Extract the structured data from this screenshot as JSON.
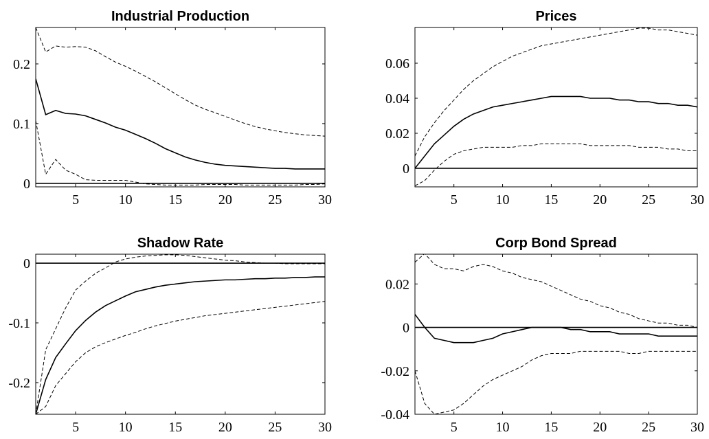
{
  "chart_data": [
    {
      "type": "line",
      "title": "Industrial Production",
      "x": [
        1,
        2,
        3,
        4,
        5,
        6,
        7,
        8,
        9,
        10,
        11,
        12,
        13,
        14,
        15,
        16,
        17,
        18,
        19,
        20,
        21,
        22,
        23,
        24,
        25,
        26,
        27,
        28,
        29,
        30
      ],
      "xlim": [
        1,
        30
      ],
      "xticks": [
        5,
        10,
        15,
        20,
        25,
        30
      ],
      "ylim": [
        -0.006,
        0.261
      ],
      "yticks": [
        0,
        0.1,
        0.2
      ],
      "reference_line": 0,
      "series": [
        {
          "color": "#000000",
          "dash": false,
          "values": [
            0.175,
            0.115,
            0.122,
            0.117,
            0.116,
            0.113,
            0.107,
            0.101,
            0.094,
            0.089,
            0.082,
            0.075,
            0.067,
            0.058,
            0.051,
            0.044,
            0.039,
            0.035,
            0.032,
            0.03,
            0.029,
            0.028,
            0.027,
            0.026,
            0.025,
            0.025,
            0.024,
            0.024,
            0.024,
            0.024
          ]
        },
        {
          "color": "#000000",
          "dash": true,
          "values": [
            0.261,
            0.22,
            0.23,
            0.228,
            0.229,
            0.228,
            0.222,
            0.212,
            0.203,
            0.196,
            0.188,
            0.179,
            0.17,
            0.16,
            0.15,
            0.14,
            0.131,
            0.124,
            0.118,
            0.112,
            0.106,
            0.1,
            0.095,
            0.091,
            0.088,
            0.085,
            0.083,
            0.081,
            0.08,
            0.079
          ]
        },
        {
          "color": "#000000",
          "dash": true,
          "values": [
            0.105,
            0.015,
            0.04,
            0.022,
            0.015,
            0.006,
            0.005,
            0.005,
            0.005,
            0.005,
            0.002,
            -0.001,
            -0.002,
            -0.003,
            -0.003,
            -0.003,
            -0.003,
            -0.002,
            -0.002,
            -0.002,
            -0.002,
            -0.003,
            -0.003,
            -0.003,
            -0.003,
            -0.003,
            -0.003,
            -0.002,
            -0.002,
            -0.001
          ]
        }
      ]
    },
    {
      "type": "line",
      "title": "Prices",
      "x": [
        1,
        2,
        3,
        4,
        5,
        6,
        7,
        8,
        9,
        10,
        11,
        12,
        13,
        14,
        15,
        16,
        17,
        18,
        19,
        20,
        21,
        22,
        23,
        24,
        25,
        26,
        27,
        28,
        29,
        30
      ],
      "xlim": [
        1,
        30
      ],
      "xticks": [
        5,
        10,
        15,
        20,
        25,
        30
      ],
      "ylim": [
        -0.0106,
        0.0804
      ],
      "yticks": [
        0,
        0.02,
        0.04,
        0.06
      ],
      "reference_line": 0,
      "series": [
        {
          "color": "#000000",
          "dash": false,
          "values": [
            0,
            0.007,
            0.014,
            0.019,
            0.024,
            0.028,
            0.031,
            0.033,
            0.035,
            0.036,
            0.037,
            0.038,
            0.039,
            0.04,
            0.041,
            0.041,
            0.041,
            0.041,
            0.04,
            0.04,
            0.04,
            0.039,
            0.039,
            0.038,
            0.038,
            0.037,
            0.037,
            0.036,
            0.036,
            0.035
          ]
        },
        {
          "color": "#000000",
          "dash": true,
          "values": [
            0.007,
            0.018,
            0.026,
            0.033,
            0.039,
            0.045,
            0.05,
            0.054,
            0.058,
            0.061,
            0.064,
            0.066,
            0.068,
            0.07,
            0.071,
            0.072,
            0.073,
            0.074,
            0.075,
            0.076,
            0.077,
            0.078,
            0.079,
            0.08,
            0.08,
            0.079,
            0.079,
            0.078,
            0.077,
            0.076
          ]
        },
        {
          "color": "#000000",
          "dash": true,
          "values": [
            -0.01,
            -0.007,
            -0.001,
            0.004,
            0.008,
            0.01,
            0.011,
            0.012,
            0.012,
            0.012,
            0.012,
            0.013,
            0.013,
            0.014,
            0.014,
            0.014,
            0.014,
            0.014,
            0.013,
            0.013,
            0.013,
            0.013,
            0.013,
            0.012,
            0.012,
            0.012,
            0.011,
            0.011,
            0.01,
            0.01
          ]
        }
      ]
    },
    {
      "type": "line",
      "title": "Shadow Rate",
      "x": [
        1,
        2,
        3,
        4,
        5,
        6,
        7,
        8,
        9,
        10,
        11,
        12,
        13,
        14,
        15,
        16,
        17,
        18,
        19,
        20,
        21,
        22,
        23,
        24,
        25,
        26,
        27,
        28,
        29,
        30
      ],
      "xlim": [
        1,
        30
      ],
      "xticks": [
        5,
        10,
        15,
        20,
        25,
        30
      ],
      "ylim": [
        -0.253,
        0.015
      ],
      "yticks": [
        -0.2,
        -0.1,
        0
      ],
      "reference_line": 0,
      "series": [
        {
          "color": "#000000",
          "dash": false,
          "values": [
            -0.253,
            -0.195,
            -0.158,
            -0.135,
            -0.113,
            -0.096,
            -0.082,
            -0.071,
            -0.063,
            -0.055,
            -0.048,
            -0.044,
            -0.04,
            -0.037,
            -0.035,
            -0.033,
            -0.031,
            -0.03,
            -0.029,
            -0.028,
            -0.028,
            -0.027,
            -0.026,
            -0.026,
            -0.025,
            -0.025,
            -0.024,
            -0.024,
            -0.023,
            -0.023
          ]
        },
        {
          "color": "#000000",
          "dash": true,
          "values": [
            -0.253,
            -0.145,
            -0.11,
            -0.075,
            -0.045,
            -0.03,
            -0.017,
            -0.008,
            0.002,
            0.007,
            0.01,
            0.012,
            0.013,
            0.014,
            0.014,
            0.013,
            0.011,
            0.009,
            0.007,
            0.005,
            0.004,
            0.002,
            0.001,
            0.0,
            0.0,
            -0.001,
            -0.001,
            -0.001,
            -0.001,
            -0.001
          ]
        },
        {
          "color": "#000000",
          "dash": true,
          "values": [
            -0.253,
            -0.24,
            -0.205,
            -0.185,
            -0.165,
            -0.15,
            -0.14,
            -0.133,
            -0.127,
            -0.121,
            -0.116,
            -0.11,
            -0.105,
            -0.101,
            -0.097,
            -0.094,
            -0.091,
            -0.088,
            -0.086,
            -0.084,
            -0.082,
            -0.08,
            -0.078,
            -0.076,
            -0.074,
            -0.072,
            -0.07,
            -0.068,
            -0.066,
            -0.064
          ]
        }
      ]
    },
    {
      "type": "line",
      "title": "Corp Bond Spread",
      "x": [
        1,
        2,
        3,
        4,
        5,
        6,
        7,
        8,
        9,
        10,
        11,
        12,
        13,
        14,
        15,
        16,
        17,
        18,
        19,
        20,
        21,
        22,
        23,
        24,
        25,
        26,
        27,
        28,
        29,
        30
      ],
      "xlim": [
        1,
        30
      ],
      "xticks": [
        5,
        10,
        15,
        20,
        25,
        30
      ],
      "ylim": [
        -0.04,
        0.0337
      ],
      "yticks": [
        -0.04,
        -0.02,
        0,
        0.02
      ],
      "reference_line": 0,
      "series": [
        {
          "color": "#000000",
          "dash": false,
          "values": [
            0.006,
            0.0,
            -0.005,
            -0.006,
            -0.007,
            -0.007,
            -0.007,
            -0.006,
            -0.005,
            -0.003,
            -0.002,
            -0.001,
            0.0,
            0.0,
            0.0,
            0.0,
            -0.001,
            -0.001,
            -0.002,
            -0.002,
            -0.002,
            -0.003,
            -0.003,
            -0.003,
            -0.003,
            -0.004,
            -0.004,
            -0.004,
            -0.004,
            -0.004
          ]
        },
        {
          "color": "#000000",
          "dash": true,
          "values": [
            0.03,
            0.034,
            0.029,
            0.027,
            0.027,
            0.026,
            0.028,
            0.029,
            0.028,
            0.026,
            0.025,
            0.023,
            0.022,
            0.021,
            0.019,
            0.017,
            0.015,
            0.013,
            0.012,
            0.01,
            0.009,
            0.007,
            0.006,
            0.004,
            0.003,
            0.002,
            0.002,
            0.001,
            0.001,
            0.0
          ]
        },
        {
          "color": "#000000",
          "dash": true,
          "values": [
            -0.02,
            -0.035,
            -0.04,
            -0.039,
            -0.038,
            -0.035,
            -0.031,
            -0.027,
            -0.024,
            -0.022,
            -0.02,
            -0.018,
            -0.015,
            -0.013,
            -0.012,
            -0.012,
            -0.012,
            -0.011,
            -0.011,
            -0.011,
            -0.011,
            -0.011,
            -0.012,
            -0.012,
            -0.011,
            -0.011,
            -0.011,
            -0.011,
            -0.011,
            -0.011
          ]
        }
      ]
    }
  ]
}
